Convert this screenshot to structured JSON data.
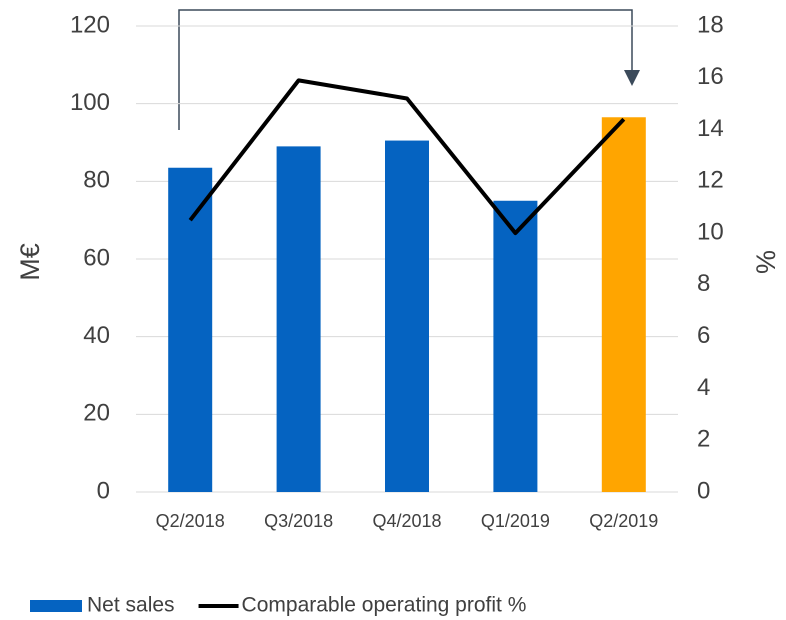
{
  "chart_data": {
    "type": "bar-line",
    "categories": [
      "Q2/2018",
      "Q3/2018",
      "Q4/2018",
      "Q1/2019",
      "Q2/2019"
    ],
    "series": [
      {
        "name": "Net sales",
        "type": "bar",
        "color": "#0563c1",
        "colors": [
          "#0563c1",
          "#0563c1",
          "#0563c1",
          "#0563c1",
          "#ffa500"
        ],
        "values": [
          83.5,
          89,
          90.5,
          75,
          96.5
        ]
      },
      {
        "name": "Comparable operating profit %",
        "type": "line",
        "axis": "y2",
        "color": "#000000",
        "values": [
          10.5,
          15.9,
          15.2,
          10.0,
          14.4
        ]
      }
    ],
    "ylabel": "M€",
    "y2label": "%",
    "ylim": [
      0,
      120
    ],
    "yticks": [
      0,
      20,
      40,
      60,
      80,
      100,
      120
    ],
    "y2lim": [
      0,
      18
    ],
    "y2ticks": [
      0,
      2,
      4,
      6,
      8,
      10,
      12,
      14,
      16,
      18
    ],
    "grid": true,
    "legend": "bottom"
  }
}
